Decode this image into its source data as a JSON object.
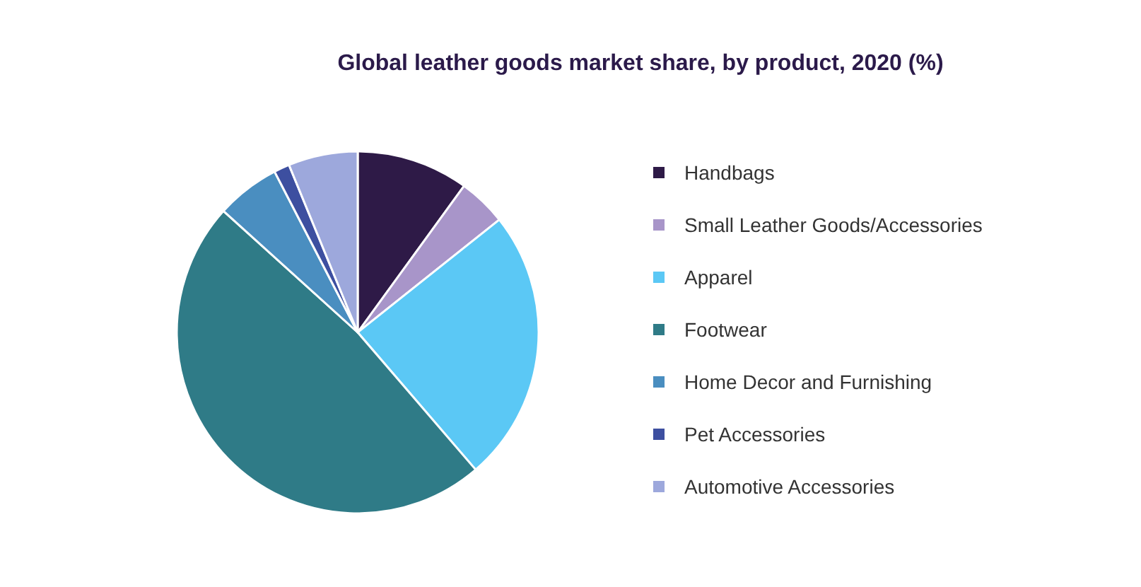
{
  "chart_data": {
    "type": "pie",
    "title": "Global leather goods market share, by product, 2020 (%)",
    "categories": [
      "Handbags",
      "Small Leather Goods/Accessories",
      "Apparel",
      "Footwear",
      "Home Decor and Furnishing",
      "Pet Accessories",
      "Automotive Accessories"
    ],
    "values": [
      10,
      4.3,
      24.4,
      48,
      5.7,
      1.4,
      6.2
    ],
    "colors": [
      "#2e1a47",
      "#a895c9",
      "#5bc8f5",
      "#2f7b87",
      "#4a8ec0",
      "#3d4fa0",
      "#9da8dc"
    ],
    "legend": "right"
  }
}
